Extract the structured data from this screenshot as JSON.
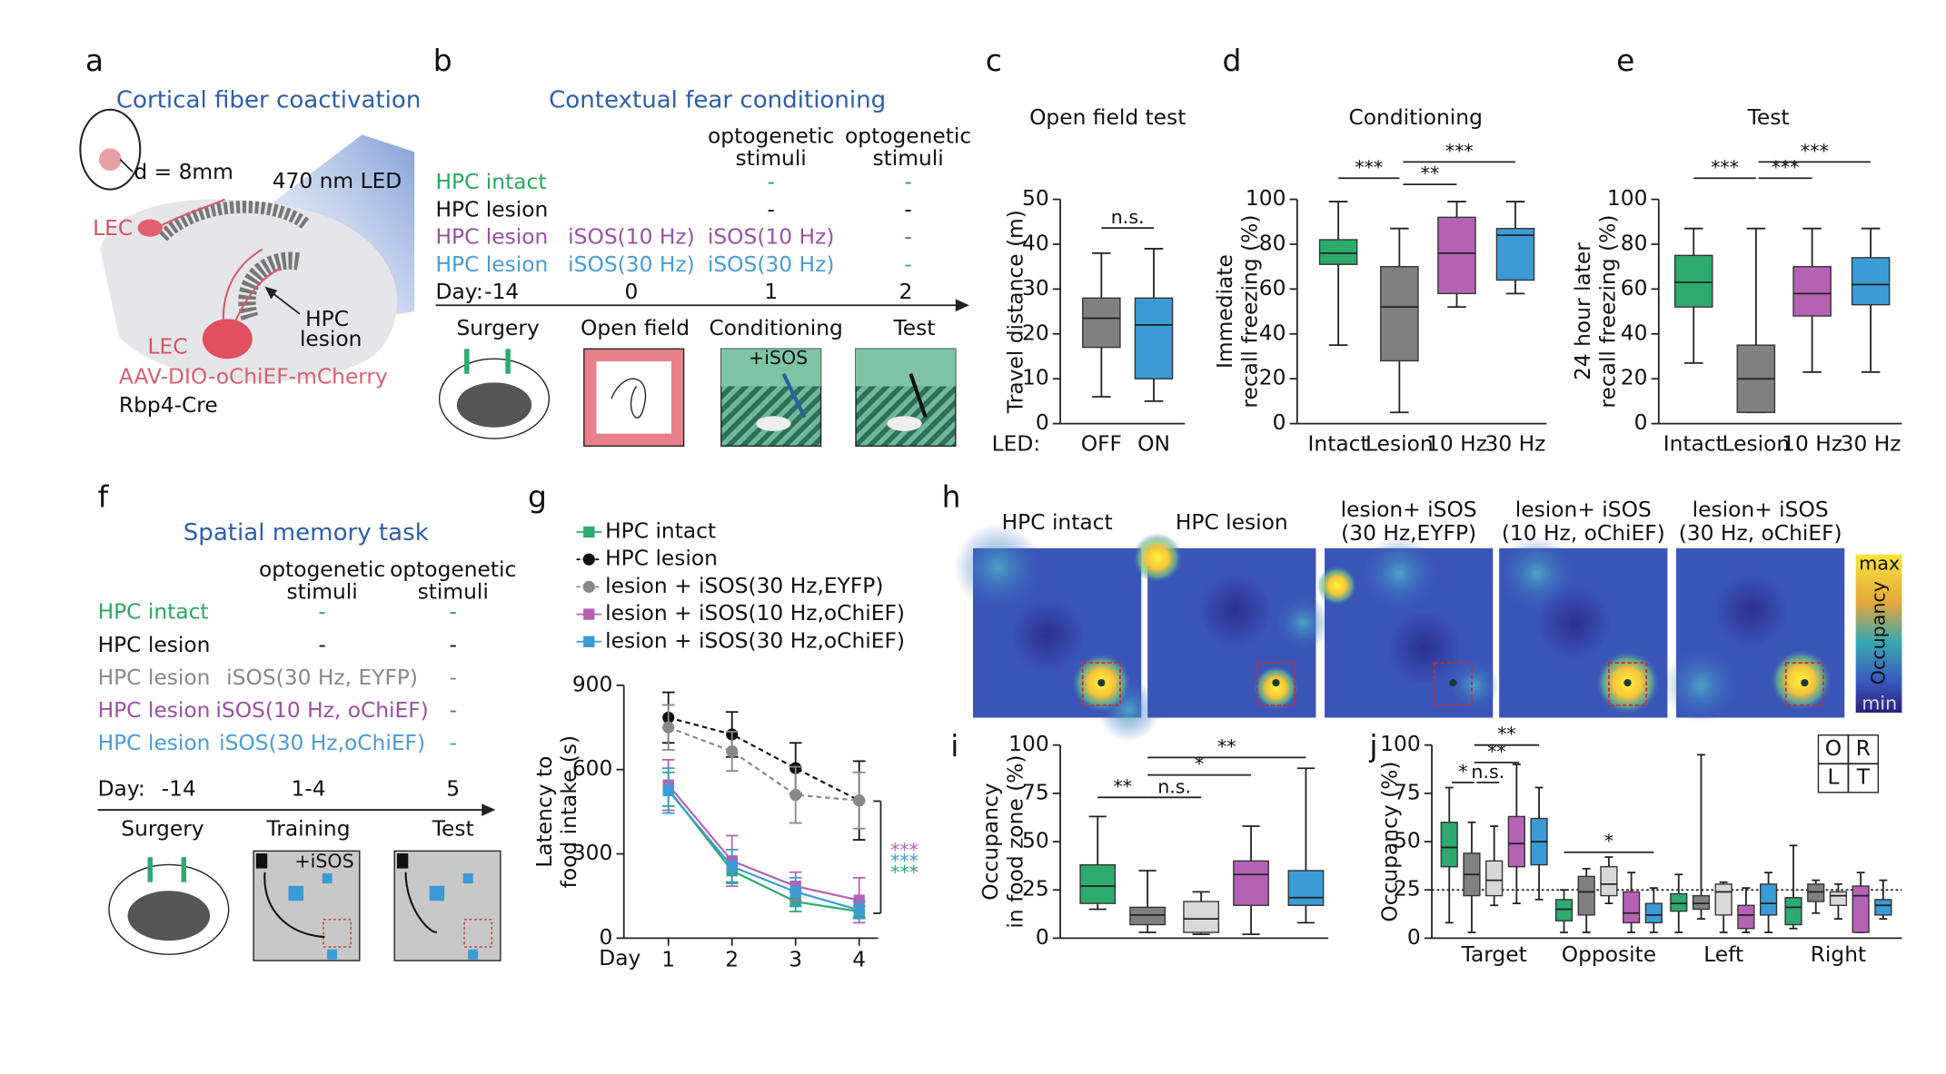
{
  "panels": {
    "a": {
      "letter": "a",
      "title": "Cortical fiber coactivation",
      "diameter": "d = 8mm",
      "led": "470 nm LED",
      "lec": [
        "LEC",
        "LEC"
      ],
      "lesion": [
        "HPC",
        "lesion"
      ],
      "virus": "AAV-DIO-oChiEF-mCherry",
      "mouse": "Rbp4-Cre"
    },
    "b": {
      "letter": "b",
      "title": "Contextual fear conditioning",
      "headers": [
        [
          "optogenetic",
          "stimuli"
        ],
        [
          "optogenetic",
          "stimuli"
        ]
      ],
      "groups": [
        "HPC intact",
        "HPC lesion",
        "HPC lesion",
        "HPC lesion"
      ],
      "cells": [
        [
          "-",
          "-"
        ],
        [
          "-",
          "-"
        ],
        [
          "iSOS(10 Hz)",
          "iSOS(10 Hz)",
          "-"
        ],
        [
          "iSOS(30 Hz)",
          "iSOS(30 Hz)",
          "-"
        ]
      ],
      "day_label": "Day:",
      "days": [
        "-14",
        "0",
        "1",
        "2"
      ],
      "stages": [
        "Surgery",
        "Open field",
        "Conditioning",
        "Test"
      ],
      "stim": "+iSOS"
    },
    "f": {
      "letter": "f",
      "title": "Spatial memory task",
      "headers": [
        [
          "optogenetic",
          "stimuli"
        ],
        [
          "optogenetic",
          "stimuli"
        ]
      ],
      "groups": [
        "HPC intact",
        "HPC lesion",
        "HPC lesion",
        "HPC lesion",
        "HPC lesion"
      ],
      "cells": [
        [
          "-",
          "-"
        ],
        [
          "-",
          "-"
        ],
        [
          "iSOS(30 Hz, EYFP)",
          "-"
        ],
        [
          "iSOS(10 Hz, oChiEF)",
          "-"
        ],
        [
          "iSOS(30 Hz,oChiEF)",
          "-"
        ]
      ],
      "day_label": "Day:",
      "days": [
        "-14",
        "1-4",
        "5"
      ],
      "stages": [
        "Surgery",
        "Training",
        "Test"
      ],
      "stim": "+iSOS"
    },
    "h": {
      "letter": "h",
      "titles": [
        [
          "HPC intact"
        ],
        [
          "HPC lesion"
        ],
        [
          "lesion+ iSOS",
          "(30 Hz,EYFP)"
        ],
        [
          "lesion+ iSOS",
          "(10 Hz, oChiEF)"
        ],
        [
          "lesion+ iSOS",
          "(30 Hz, oChiEF)"
        ]
      ],
      "colorbar": [
        "max",
        "Occupancy",
        "min"
      ]
    }
  },
  "chart_data": [
    {
      "label": "c",
      "type": "box",
      "title": "Open field test",
      "ylabel": [
        "Travel distance (m)"
      ],
      "xlabel": "LED:",
      "categories": [
        "OFF",
        "ON"
      ],
      "ylim": [
        0,
        50
      ],
      "yticks": [
        0,
        10,
        20,
        30,
        40,
        50
      ],
      "boxes": [
        {
          "min": 6,
          "q1": 17,
          "median": 23.5,
          "q3": 28,
          "max": 38,
          "color": "#808080"
        },
        {
          "min": 5,
          "q1": 10,
          "median": 22,
          "q3": 28,
          "max": 39,
          "color": "#3a9bd5"
        }
      ],
      "annotations": [
        "n.s."
      ]
    },
    {
      "label": "d",
      "type": "box",
      "title": "Conditioning",
      "ylabel": [
        "Immediate",
        "recall freezing (%)"
      ],
      "categories": [
        "Intact",
        "Lesion",
        "10 Hz",
        "30 Hz"
      ],
      "ylim": [
        0,
        100
      ],
      "yticks": [
        0,
        20,
        40,
        60,
        80,
        100
      ],
      "boxes": [
        {
          "min": 35,
          "q1": 71,
          "median": 76,
          "q3": 82,
          "max": 99,
          "color": "#2daa6e"
        },
        {
          "min": 5,
          "q1": 28,
          "median": 52,
          "q3": 70,
          "max": 87,
          "color": "#808080"
        },
        {
          "min": 52,
          "q1": 58,
          "median": 76,
          "q3": 92,
          "max": 99,
          "color": "#b562b4"
        },
        {
          "min": 58,
          "q1": 64,
          "median": 84,
          "q3": 87,
          "max": 99,
          "color": "#3a9bd5"
        }
      ],
      "annotations": [
        "***",
        "**",
        "***"
      ]
    },
    {
      "label": "e",
      "type": "box",
      "title": "Test",
      "ylabel": [
        "24 hour later",
        "recall freezing (%)"
      ],
      "categories": [
        "Intact",
        "Lesion",
        "10 Hz",
        "30 Hz"
      ],
      "ylim": [
        0,
        100
      ],
      "yticks": [
        0,
        20,
        40,
        60,
        80,
        100
      ],
      "boxes": [
        {
          "min": 27,
          "q1": 52,
          "median": 63,
          "q3": 75,
          "max": 87,
          "color": "#2daa6e"
        },
        {
          "min": 5,
          "q1": 5,
          "median": 20,
          "q3": 35,
          "max": 87,
          "color": "#808080"
        },
        {
          "min": 23,
          "q1": 48,
          "median": 58,
          "q3": 70,
          "max": 87,
          "color": "#b562b4"
        },
        {
          "min": 23,
          "q1": 53,
          "median": 62,
          "q3": 74,
          "max": 87,
          "color": "#3a9bd5"
        }
      ],
      "annotations": [
        "***",
        "***",
        "***"
      ]
    },
    {
      "label": "g",
      "type": "line",
      "ylabel": [
        "Latency to",
        "food intake (s)"
      ],
      "xlabel": "Day",
      "x": [
        1,
        2,
        3,
        4
      ],
      "xlim": [
        0.3,
        4.3
      ],
      "xticks": [
        1,
        2,
        3,
        4
      ],
      "ylim": [
        0,
        900
      ],
      "yticks": [
        0,
        300,
        600,
        900
      ],
      "series": [
        {
          "name": "HPC intact",
          "color": "#2daa6e",
          "marker": "square",
          "dashed": false,
          "values": [
            530,
            240,
            130,
            95
          ],
          "errors": [
            60,
            40,
            35,
            20
          ]
        },
        {
          "name": "HPC lesion",
          "color": "#111111",
          "marker": "circle",
          "dashed": true,
          "values": [
            785,
            725,
            605,
            490
          ],
          "errors": [
            90,
            80,
            90,
            140
          ]
        },
        {
          "name": "lesion + iSOS(30 Hz,EYFP)",
          "color": "#888888",
          "marker": "circle",
          "dashed": true,
          "values": [
            750,
            665,
            510,
            490
          ],
          "errors": [
            80,
            70,
            100,
            100
          ]
        },
        {
          "name": "lesion + iSOS(10 Hz,oChiEF)",
          "color": "#b562b4",
          "marker": "square",
          "dashed": false,
          "values": [
            545,
            275,
            185,
            135
          ],
          "errors": [
            90,
            90,
            50,
            80
          ]
        },
        {
          "name": "lesion + iSOS(30 Hz,oChiEF)",
          "color": "#3a9bd5",
          "marker": "square",
          "dashed": false,
          "values": [
            525,
            255,
            165,
            100
          ],
          "errors": [
            80,
            60,
            50,
            30
          ]
        }
      ],
      "annotations": [
        {
          "text": "***",
          "color": "#b562b4"
        },
        {
          "text": "***",
          "color": "#3a9bd5"
        },
        {
          "text": "***",
          "color": "#2daa6e"
        }
      ]
    },
    {
      "label": "i",
      "type": "box",
      "ylabel": [
        "Occupancy",
        "in food zone (%)"
      ],
      "ylim": [
        0,
        100
      ],
      "yticks": [
        0,
        25,
        50,
        75,
        100
      ],
      "boxes": [
        {
          "min": 15,
          "q1": 18,
          "median": 27,
          "q3": 38,
          "max": 63,
          "color": "#2daa6e"
        },
        {
          "min": 3,
          "q1": 7,
          "median": 12,
          "q3": 16,
          "max": 35,
          "color": "#808080"
        },
        {
          "min": 2,
          "q1": 3,
          "median": 10,
          "q3": 19,
          "max": 24,
          "color": "#d8d8d8"
        },
        {
          "min": 2,
          "q1": 17,
          "median": 33,
          "q3": 40,
          "max": 58,
          "color": "#b562b4"
        },
        {
          "min": 8,
          "q1": 17,
          "median": 21,
          "q3": 35,
          "max": 88,
          "color": "#3a9bd5"
        }
      ],
      "annotations": [
        "**",
        "n.s.",
        "*",
        "**"
      ]
    },
    {
      "label": "j",
      "type": "grouped_box",
      "ylabel": [
        "Occupancy (%)"
      ],
      "categories": [
        "Target",
        "Opposite",
        "Left",
        "Right"
      ],
      "ylim": [
        0,
        100
      ],
      "yticks": [
        0,
        25,
        50,
        75,
        100
      ],
      "reference_line": 25,
      "series": [
        {
          "color": "#2daa6e",
          "boxes": [
            {
              "min": 8,
              "q1": 37,
              "median": 47,
              "q3": 60,
              "max": 78
            },
            {
              "min": 3,
              "q1": 9,
              "median": 15,
              "q3": 20,
              "max": 25
            },
            {
              "min": 3,
              "q1": 14,
              "median": 18,
              "q3": 23,
              "max": 33
            },
            {
              "min": 5,
              "q1": 7,
              "median": 16,
              "q3": 21,
              "max": 48
            }
          ]
        },
        {
          "color": "#808080",
          "boxes": [
            {
              "min": 3,
              "q1": 22,
              "median": 33,
              "q3": 44,
              "max": 60
            },
            {
              "min": 3,
              "q1": 12,
              "median": 24,
              "q3": 32,
              "max": 36
            },
            {
              "min": 10,
              "q1": 15,
              "median": 18,
              "q3": 22,
              "max": 95
            },
            {
              "min": 13,
              "q1": 19,
              "median": 24,
              "q3": 28,
              "max": 30
            }
          ]
        },
        {
          "color": "#d8d8d8",
          "boxes": [
            {
              "min": 17,
              "q1": 22,
              "median": 30,
              "q3": 40,
              "max": 58
            },
            {
              "min": 18,
              "q1": 22,
              "median": 28,
              "q3": 37,
              "max": 42
            },
            {
              "min": 3,
              "q1": 12,
              "median": 24,
              "q3": 28,
              "max": 29
            },
            {
              "min": 10,
              "q1": 17,
              "median": 22,
              "q3": 24,
              "max": 28
            }
          ]
        },
        {
          "color": "#b562b4",
          "boxes": [
            {
              "min": 18,
              "q1": 37,
              "median": 49,
              "q3": 63,
              "max": 90
            },
            {
              "min": 3,
              "q1": 8,
              "median": 13,
              "q3": 24,
              "max": 34
            },
            {
              "min": 3,
              "q1": 5,
              "median": 12,
              "q3": 17,
              "max": 26
            },
            {
              "min": 3,
              "q1": 3,
              "median": 22,
              "q3": 27,
              "max": 34
            }
          ]
        },
        {
          "color": "#3a9bd5",
          "boxes": [
            {
              "min": 20,
              "q1": 38,
              "median": 50,
              "q3": 62,
              "max": 78
            },
            {
              "min": 3,
              "q1": 8,
              "median": 12,
              "q3": 18,
              "max": 26
            },
            {
              "min": 3,
              "q1": 12,
              "median": 18,
              "q3": 28,
              "max": 34
            },
            {
              "min": 10,
              "q1": 12,
              "median": 17,
              "q3": 20,
              "max": 30
            }
          ]
        }
      ],
      "annotations": [
        "*",
        "n.s.",
        "**",
        "**",
        "*"
      ],
      "legend_grid": [
        "O",
        "R",
        "L",
        "T"
      ]
    }
  ]
}
